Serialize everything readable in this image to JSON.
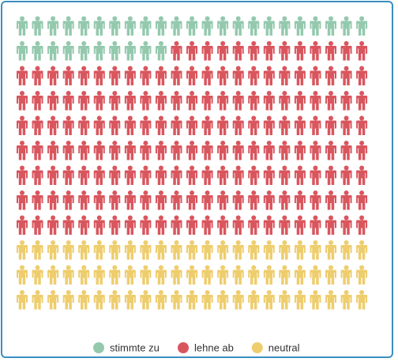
{
  "chart_data": {
    "type": "pictogram",
    "rows": 12,
    "columns": 23,
    "total_icons": 276,
    "icon": "person-icon",
    "series": [
      {
        "name": "stimmte zu",
        "count": 33,
        "color": "#94c9ae"
      },
      {
        "name": "lehne ab",
        "count": 174,
        "color": "#d9565e"
      },
      {
        "name": "neutral",
        "count": 69,
        "color": "#eecd6d"
      }
    ],
    "legend_position": "bottom-center"
  }
}
